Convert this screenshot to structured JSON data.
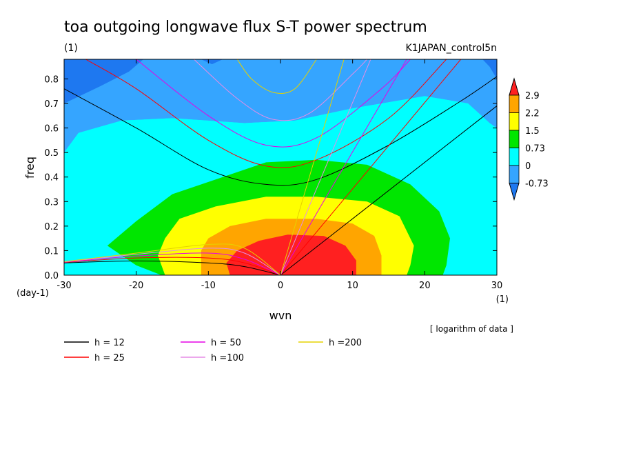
{
  "chart_data": {
    "type": "heatmap",
    "title": "toa outgoing longwave flux S-T power spectrum",
    "units": "(1)",
    "run_label": "K1JAPAN_control5n",
    "xlabel": "wvn",
    "ylabel": "freq",
    "x_unit_label": "(1)",
    "y_unit_label": "(day-1)",
    "xlim": [
      -30,
      30
    ],
    "ylim": [
      0,
      0.88
    ],
    "xticks": [
      "-30",
      "-20",
      "-10",
      "0",
      "10",
      "20",
      "30"
    ],
    "yticks": [
      "0.0",
      "0.1",
      "0.2",
      "0.3",
      "0.4",
      "0.5",
      "0.6",
      "0.7",
      "0.8"
    ],
    "note": "[ logarithm of data ]",
    "colorbar": {
      "labels": [
        "2.9",
        "2.2",
        "1.5",
        "0.73",
        "0",
        "-0.73"
      ],
      "levels": [
        -0.73,
        0,
        0.73,
        1.5,
        2.2,
        2.9
      ],
      "colors": [
        "#1e78f0",
        "#35a5ff",
        "#00ffff",
        "#00e600",
        "#ffff00",
        "#ffa500",
        "#ff2020"
      ]
    },
    "regions": [
      {
        "level": "-0.73..0",
        "color": "#35a5ff",
        "outline": [
          [
            -30,
            0.88
          ],
          [
            30,
            0.88
          ],
          [
            30,
            0.6
          ],
          [
            29,
            0.62
          ],
          [
            26,
            0.7
          ],
          [
            20,
            0.73
          ],
          [
            10,
            0.68
          ],
          [
            2,
            0.63
          ],
          [
            -5,
            0.62
          ],
          [
            -15,
            0.64
          ],
          [
            -22,
            0.63
          ],
          [
            -28,
            0.58
          ],
          [
            -30,
            0.5
          ]
        ]
      },
      {
        "level": "0..0.73",
        "color": "#00ffff",
        "outline": [
          [
            -30,
            0.5
          ],
          [
            -28,
            0.58
          ],
          [
            -22,
            0.63
          ],
          [
            -15,
            0.64
          ],
          [
            -5,
            0.62
          ],
          [
            2,
            0.63
          ],
          [
            10,
            0.68
          ],
          [
            20,
            0.73
          ],
          [
            26,
            0.7
          ],
          [
            29,
            0.62
          ],
          [
            30,
            0.6
          ],
          [
            30,
            0
          ],
          [
            -30,
            0
          ]
        ]
      },
      {
        "level": "0.73..1.5",
        "color": "#00e600",
        "outline": [
          [
            -24,
            0.12
          ],
          [
            -20,
            0.22
          ],
          [
            -15,
            0.33
          ],
          [
            -8,
            0.4
          ],
          [
            -2,
            0.46
          ],
          [
            5,
            0.47
          ],
          [
            12,
            0.45
          ],
          [
            18,
            0.37
          ],
          [
            22,
            0.26
          ],
          [
            23.5,
            0.15
          ],
          [
            23,
            0.04
          ],
          [
            22.5,
            0
          ],
          [
            -16.5,
            0
          ],
          [
            -20,
            0.04
          ]
        ]
      },
      {
        "level": "1.5..2.2",
        "color": "#ffff00",
        "outline": [
          [
            -17,
            0.08
          ],
          [
            -16,
            0.15
          ],
          [
            -14,
            0.23
          ],
          [
            -9,
            0.28
          ],
          [
            -2,
            0.32
          ],
          [
            5,
            0.32
          ],
          [
            12,
            0.3
          ],
          [
            16.5,
            0.24
          ],
          [
            18.5,
            0.12
          ],
          [
            18,
            0.04
          ],
          [
            17.5,
            0
          ],
          [
            -16,
            0
          ]
        ]
      },
      {
        "level": "2.2..2.9",
        "color": "#ffa500",
        "outline": [
          [
            -11,
            0.1
          ],
          [
            -10,
            0.15
          ],
          [
            -7,
            0.2
          ],
          [
            -2,
            0.23
          ],
          [
            5,
            0.23
          ],
          [
            10,
            0.21
          ],
          [
            13,
            0.16
          ],
          [
            14,
            0.08
          ],
          [
            14,
            0
          ],
          [
            -11,
            0
          ]
        ]
      },
      {
        "level": ">2.9",
        "color": "#ff2020",
        "outline": [
          [
            -7.5,
            0.05
          ],
          [
            -6,
            0.1
          ],
          [
            -3,
            0.14
          ],
          [
            1,
            0.165
          ],
          [
            6,
            0.16
          ],
          [
            9,
            0.12
          ],
          [
            10.5,
            0.06
          ],
          [
            10.5,
            0
          ],
          [
            -7,
            0
          ]
        ]
      },
      {
        "level": "<-0.73",
        "color": "#1e78f0",
        "outline": [
          [
            -30,
            0.88
          ],
          [
            -19,
            0.88
          ],
          [
            -21,
            0.83
          ],
          [
            -25,
            0.77
          ],
          [
            -30,
            0.7
          ]
        ]
      },
      {
        "level": "<-0.73",
        "color": "#1e78f0",
        "outline": [
          [
            -11,
            0.88
          ],
          [
            -8,
            0.88
          ],
          [
            -9.5,
            0.86
          ]
        ]
      },
      {
        "level": "<-0.73",
        "color": "#1e78f0",
        "outline": [
          [
            28,
            0.88
          ],
          [
            30,
            0.88
          ],
          [
            30,
            0.8
          ],
          [
            29,
            0.85
          ]
        ]
      }
    ],
    "dispersion_legend": [
      {
        "label": "h = 12",
        "color": "#000000"
      },
      {
        "label": "h = 25",
        "color": "#ff0000"
      },
      {
        "label": "h = 50",
        "color": "#e600e6"
      },
      {
        "label": "h =100",
        "color": "#e68ce6"
      },
      {
        "label": "h =200",
        "color": "#e6d200"
      }
    ],
    "dispersion_curves": [
      {
        "name": "h = 12",
        "color": "#000000",
        "points": [
          [
            0,
            0
          ],
          [
            30,
            0.69
          ]
        ]
      },
      {
        "name": "h = 12",
        "color": "#000000",
        "points": [
          [
            -30,
            0.76
          ],
          [
            -20,
            0.6
          ],
          [
            -10,
            0.43
          ],
          [
            -2,
            0.37
          ],
          [
            5,
            0.39
          ],
          [
            15,
            0.53
          ],
          [
            25,
            0.71
          ],
          [
            30,
            0.81
          ]
        ]
      },
      {
        "name": "h = 12",
        "color": "#000000",
        "points": [
          [
            -30,
            0.05
          ],
          [
            -20,
            0.058
          ],
          [
            -10,
            0.05
          ],
          [
            -5,
            0.035
          ],
          [
            0,
            0
          ]
        ]
      },
      {
        "name": "h = 25",
        "color": "#ff0000",
        "points": [
          [
            0,
            0
          ],
          [
            25,
            0.88
          ]
        ]
      },
      {
        "name": "h = 25",
        "color": "#ff0000",
        "points": [
          [
            -27,
            0.88
          ],
          [
            -20,
            0.76
          ],
          [
            -10,
            0.55
          ],
          [
            -2,
            0.445
          ],
          [
            5,
            0.47
          ],
          [
            15,
            0.64
          ],
          [
            23,
            0.88
          ]
        ]
      },
      {
        "name": "h = 25",
        "color": "#ff0000",
        "points": [
          [
            -30,
            0.052
          ],
          [
            -20,
            0.07
          ],
          [
            -10,
            0.07
          ],
          [
            -5,
            0.05
          ],
          [
            0,
            0
          ]
        ]
      },
      {
        "name": "h = 50",
        "color": "#e600e6",
        "points": [
          [
            0,
            0
          ],
          [
            17.5,
            0.88
          ]
        ]
      },
      {
        "name": "h = 50",
        "color": "#e600e6",
        "points": [
          [
            -20,
            0.88
          ],
          [
            -10,
            0.65
          ],
          [
            -2,
            0.53
          ],
          [
            5,
            0.56
          ],
          [
            14,
            0.76
          ],
          [
            18,
            0.88
          ]
        ]
      },
      {
        "name": "h = 50",
        "color": "#e600e6",
        "points": [
          [
            -30,
            0.053
          ],
          [
            -20,
            0.078
          ],
          [
            -10,
            0.09
          ],
          [
            -5,
            0.065
          ],
          [
            0,
            0
          ]
        ]
      },
      {
        "name": "h =100",
        "color": "#e68ce6",
        "points": [
          [
            0,
            0
          ],
          [
            12.5,
            0.88
          ]
        ]
      },
      {
        "name": "h =100",
        "color": "#e68ce6",
        "points": [
          [
            -12,
            0.88
          ],
          [
            -6,
            0.72
          ],
          [
            -1,
            0.635
          ],
          [
            4,
            0.66
          ],
          [
            10,
            0.82
          ],
          [
            12,
            0.88
          ]
        ]
      },
      {
        "name": "h =100",
        "color": "#e68ce6",
        "points": [
          [
            -30,
            0.054
          ],
          [
            -20,
            0.085
          ],
          [
            -10,
            0.11
          ],
          [
            -5,
            0.09
          ],
          [
            0,
            0
          ]
        ]
      },
      {
        "name": "h =200",
        "color": "#e6d200",
        "points": [
          [
            0,
            0
          ],
          [
            8.8,
            0.88
          ]
        ]
      },
      {
        "name": "h =200",
        "color": "#e6d200",
        "points": [
          [
            -6,
            0.88
          ],
          [
            -4,
            0.8
          ],
          [
            -1,
            0.745
          ],
          [
            2,
            0.76
          ],
          [
            5,
            0.88
          ]
        ]
      },
      {
        "name": "h =200",
        "color": "#e6d200",
        "points": [
          [
            -30,
            0.055
          ],
          [
            -20,
            0.09
          ],
          [
            -10,
            0.125
          ],
          [
            -5,
            0.11
          ],
          [
            0,
            0
          ]
        ]
      }
    ]
  }
}
